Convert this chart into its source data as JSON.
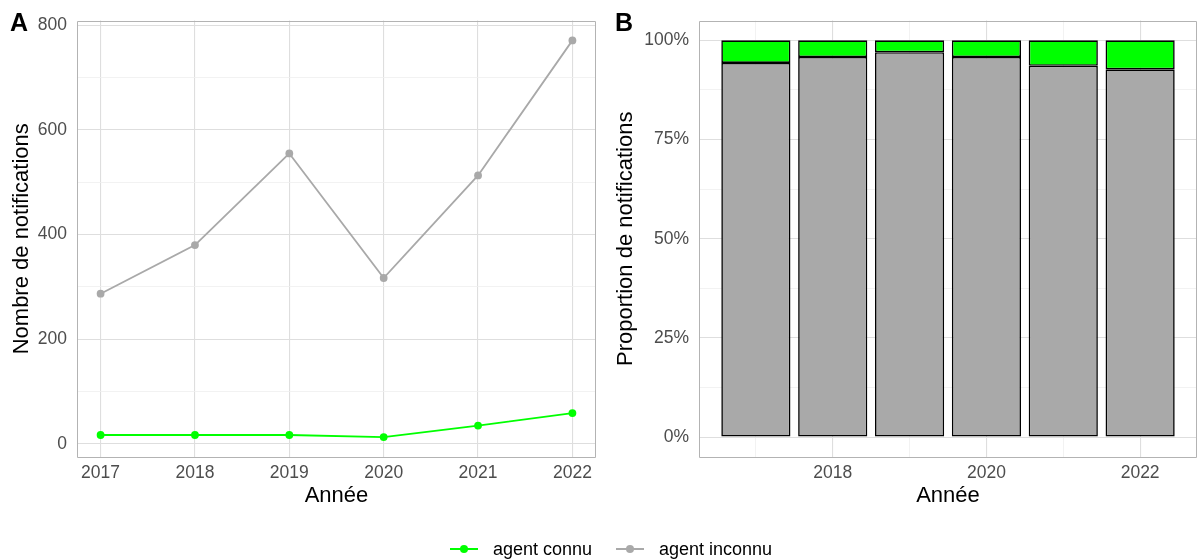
{
  "chart_data": [
    {
      "type": "line",
      "title": "A",
      "xlabel": "Année",
      "ylabel": "Nombre de notifications",
      "x": [
        2017,
        2018,
        2019,
        2020,
        2021,
        2022
      ],
      "series": [
        {
          "name": "agent connu",
          "color": "#00ff00",
          "values": [
            17,
            17,
            17,
            13,
            35,
            59
          ]
        },
        {
          "name": "agent inconnu",
          "color": "#a9a9a9",
          "values": [
            287,
            380,
            555,
            317,
            513,
            771
          ]
        }
      ],
      "xlim": [
        2016.75,
        2022.25
      ],
      "xticks": [
        2017,
        2018,
        2019,
        2020,
        2021,
        2022
      ],
      "ylim": [
        -25,
        809
      ],
      "yticks": [
        0,
        {
          "value": 100,
          "label": null
        },
        200,
        {
          "value": 300,
          "label": null
        },
        400,
        {
          "value": 500,
          "label": null
        },
        600,
        {
          "value": 700,
          "label": null
        },
        800
      ],
      "grid": true,
      "legend": "bottom",
      "marker": "circle",
      "line_style": "solid"
    },
    {
      "type": "bar",
      "title": "B",
      "xlabel": "Année",
      "ylabel": "Proportion de notifications",
      "x": [
        2017,
        2018,
        2019,
        2020,
        2021,
        2022
      ],
      "stacked": true,
      "series": [
        {
          "color": "#a9a9a9",
          "values": [
            94.3,
            95.8,
            97.0,
            95.8,
            93.6,
            92.7
          ]
        },
        {
          "color": "#00ff00",
          "values": [
            5.7,
            4.2,
            3.0,
            4.2,
            6.4,
            7.3
          ]
        }
      ],
      "xlim": [
        2016.26,
        2022.74
      ],
      "xticks": [
        {
          "value": 2017,
          "label": null
        },
        2018,
        {
          "value": 2019,
          "label": null
        },
        2020,
        {
          "value": 2021,
          "label": null
        },
        2022
      ],
      "ylim": [
        -5,
        105
      ],
      "yticks": [
        {
          "value": 0,
          "label": "0%"
        },
        {
          "value": 12.5,
          "label": null
        },
        {
          "value": 25,
          "label": "25%"
        },
        {
          "value": 37.5,
          "label": null
        },
        {
          "value": 50,
          "label": "50%"
        },
        {
          "value": 62.5,
          "label": null
        },
        {
          "value": 75,
          "label": "75%"
        },
        {
          "value": 87.5,
          "label": null
        },
        {
          "value": 100,
          "label": "100%"
        }
      ],
      "grid": true
    }
  ]
}
